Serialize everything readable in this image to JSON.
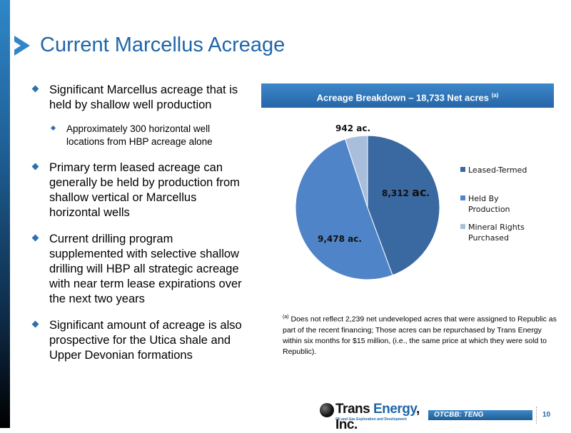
{
  "slide": {
    "title": "Current Marcellus Acreage",
    "bullets": [
      {
        "text": "Significant Marcellus acreage that is held by shallow well production",
        "sub": [
          "Approximately 300 horizontal well locations from HBP acreage alone"
        ]
      },
      {
        "text": "Primary term leased acreage can generally be held by production from shallow vertical or Marcellus horizontal wells"
      },
      {
        "text": "Current drilling program supplemented with selective shallow drilling will HBP all strategic acreage with near term lease expirations over the next two years"
      },
      {
        "text": "Significant amount of acreage is also prospective for the Utica shale and Upper Devonian formations"
      }
    ],
    "banner": {
      "text": "Acreage Breakdown – 18,733 Net acres",
      "superscript": "(a)"
    },
    "footnote": {
      "marker": "(a)",
      "text": "Does not reflect 2,239 net undeveloped acres that were assigned to Republic as part of the recent financing; Those acres can be repurchased by Trans Energy within six months for $15 million, (i.e., the same price at which they were sold to Republic)."
    },
    "logo": {
      "name_part1": "Trans ",
      "name_part2": "Energy",
      "name_part3": ", Inc.",
      "tagline": "Oil and Gas Exploration and Development"
    },
    "ticker": "OTCBB: TENG",
    "page_number": "10"
  },
  "chart_data": {
    "type": "pie",
    "categories": [
      "Leased-Termed",
      "Held By Production",
      "Mineral Rights Purchased"
    ],
    "values": [
      8312,
      9478,
      942
    ],
    "data_labels": [
      {
        "number": "8,312",
        "unit": "ac",
        "suffix": "."
      },
      {
        "number": "9,478",
        "unit": "ac",
        "suffix": "."
      },
      {
        "number": "942",
        "unit": "ac",
        "suffix": "."
      }
    ],
    "colors": [
      "#3a68a0",
      "#4f85c8",
      "#a9bedb"
    ],
    "legend_labels": [
      "Leased-Termed",
      "Held By Production",
      "Mineral Rights Purchased"
    ],
    "legend_position": "right"
  }
}
